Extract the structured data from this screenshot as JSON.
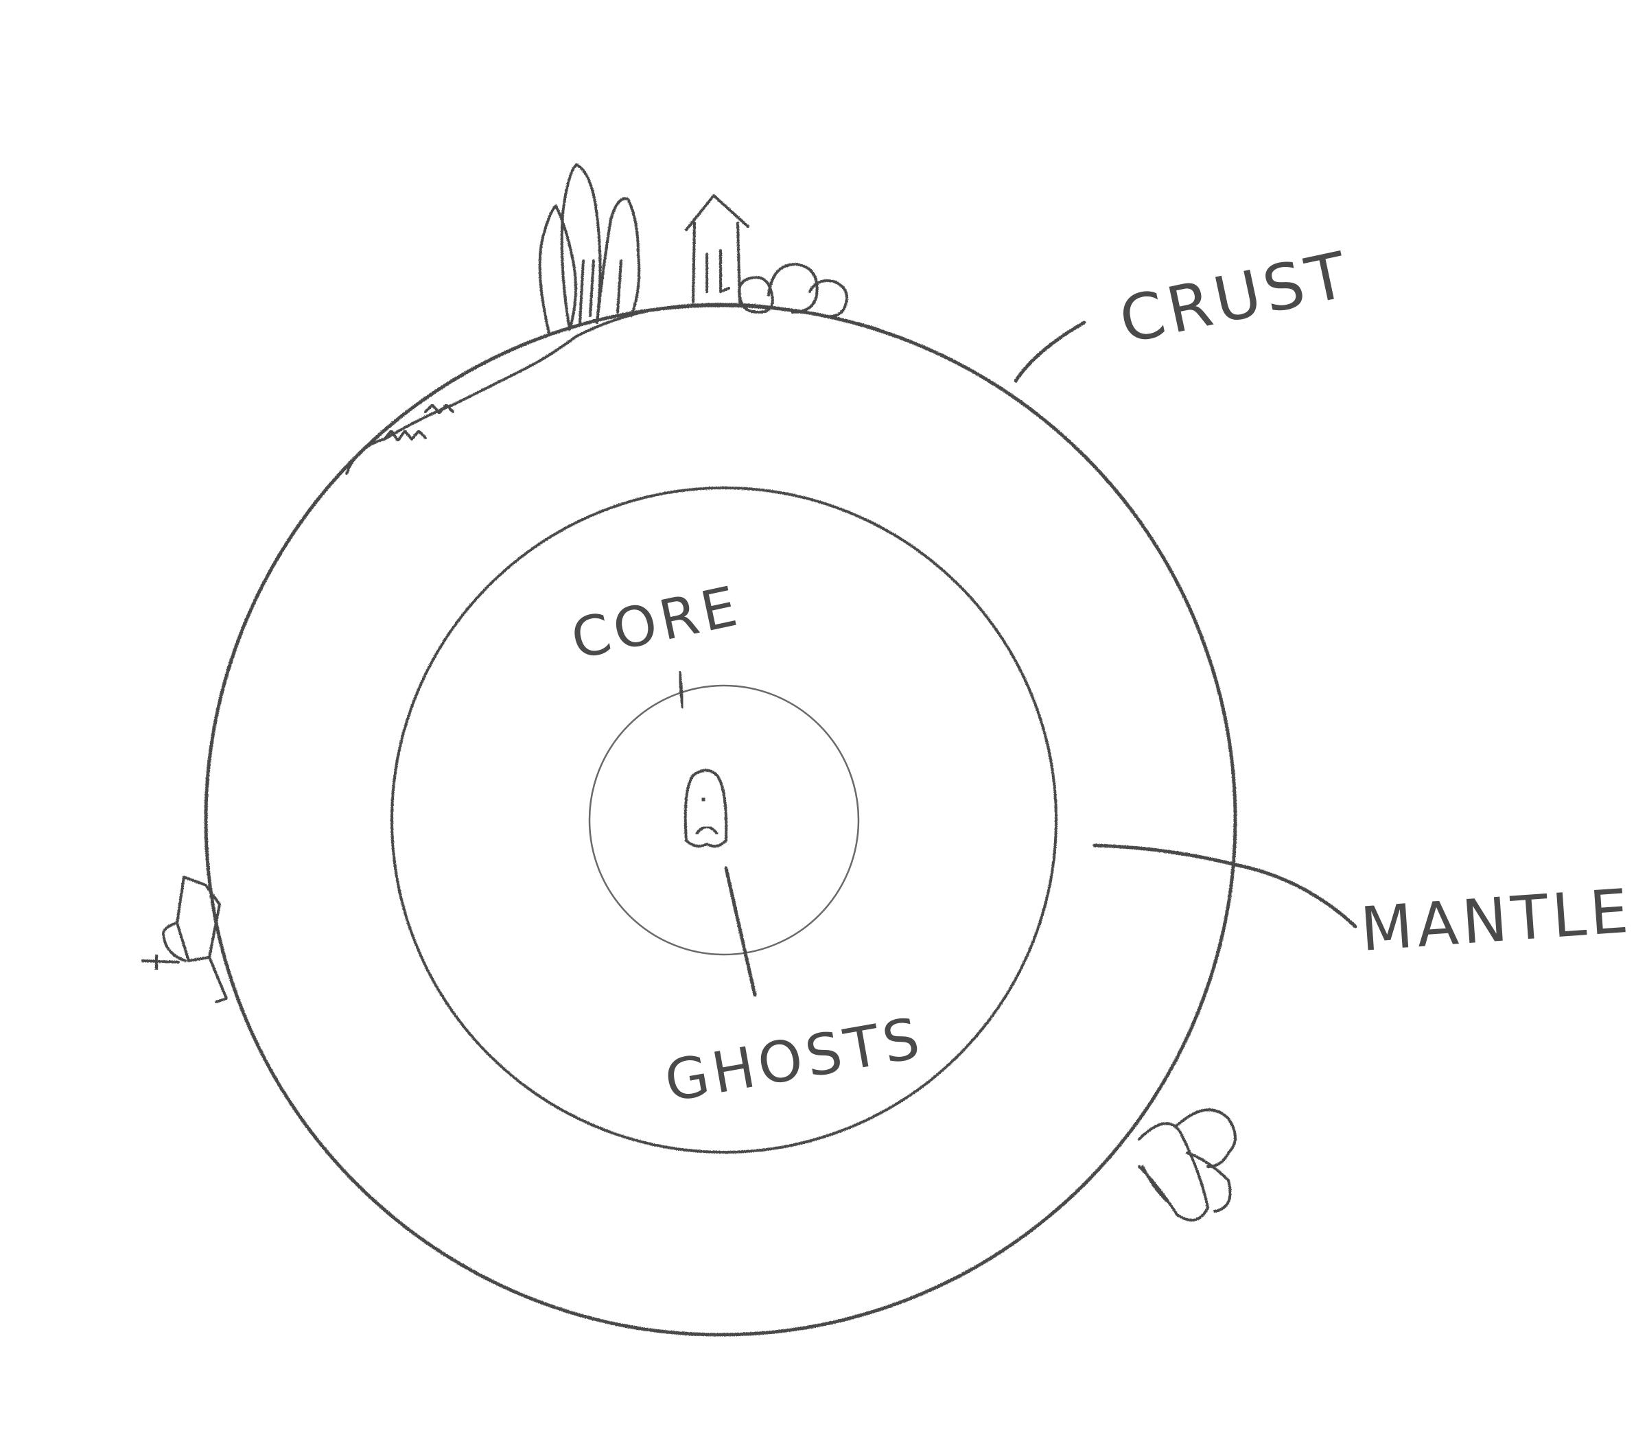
{
  "diagram": {
    "layers": [
      {
        "id": "crust",
        "label": "CRUST"
      },
      {
        "id": "mantle",
        "label": "MANTLE"
      },
      {
        "id": "core",
        "label": "CORE"
      },
      {
        "id": "center",
        "label": "GHOSTS"
      }
    ],
    "labels": {
      "crust": "CRUST",
      "mantle": "MANTLE",
      "core": "CORE",
      "ghosts": "GHOSTS"
    },
    "icons": [
      "trees-icon",
      "house-icon",
      "bushes-icon",
      "rocket-icon",
      "bush-icon",
      "ghost-icon"
    ],
    "colors": {
      "pencil": "#4a4a4a",
      "paper": "#ffffff"
    }
  }
}
